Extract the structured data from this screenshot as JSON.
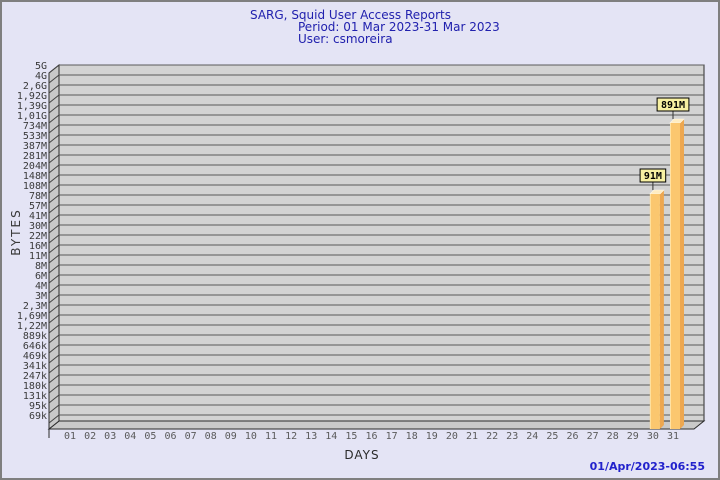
{
  "title": {
    "line1": "SARG, Squid User Access Reports",
    "line2": "Period: 01 Mar 2023-31 Mar 2023",
    "line3": "User: csmoreira"
  },
  "timestamp": "01/Apr/2023-06:55",
  "chart_data": {
    "type": "bar",
    "title": "SARG, Squid User Access Reports",
    "subtitle": "Period: 01 Mar 2023-31 Mar 2023",
    "user": "csmoreira",
    "xlabel": "DAYS",
    "ylabel": "BYTES",
    "y_scale": "log",
    "grid": true,
    "legend": "none",
    "y_tick_labels": [
      "5G",
      "4G",
      "2,6G",
      "1,92G",
      "1,39G",
      "1,01G",
      "734M",
      "533M",
      "387M",
      "281M",
      "204M",
      "148M",
      "108M",
      "78M",
      "57M",
      "41M",
      "30M",
      "22M",
      "16M",
      "11M",
      "8M",
      "6M",
      "4M",
      "3M",
      "2,3M",
      "1,69M",
      "1,22M",
      "889k",
      "646k",
      "469k",
      "341k",
      "247k",
      "180k",
      "131k",
      "95k",
      "69k"
    ],
    "x_tick_labels": [
      "01",
      "02",
      "03",
      "04",
      "05",
      "06",
      "07",
      "08",
      "09",
      "10",
      "11",
      "12",
      "13",
      "14",
      "15",
      "16",
      "17",
      "18",
      "19",
      "20",
      "21",
      "22",
      "23",
      "24",
      "25",
      "26",
      "27",
      "28",
      "29",
      "30",
      "31"
    ],
    "bars": [
      {
        "day": "30",
        "value_label": "91M",
        "value_bytes": 91000000
      },
      {
        "day": "31",
        "value_label": "891M",
        "value_bytes": 891000000
      }
    ],
    "colors": {
      "background": "#E4E4F5",
      "plot_background": "#D3D3D3",
      "wall": "#C9C9C9",
      "gridline": "#5A5A5A",
      "frame": "#2B2B2B",
      "title_text": "#2121AE",
      "timestamp_text": "#2222CC",
      "y_tick_text": "#3A3A3A",
      "x_tick_text": "#5A5A5A",
      "bar_front": "#FBC76F",
      "bar_side": "#EDA750",
      "bar_top": "#FFEDC2",
      "value_box_fill": "#F7F0A2",
      "value_box_border": "#000000",
      "value_text": "#000000"
    }
  }
}
